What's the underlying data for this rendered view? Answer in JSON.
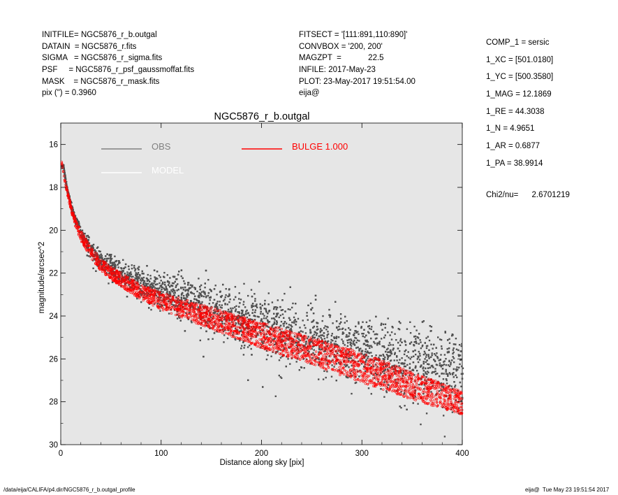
{
  "header_left": [
    {
      "key": "INITFILE=",
      "value": "NGC5876_r_b.outgal"
    },
    {
      "key": "DATAIN  =",
      "value": "NGC5876_r.fits"
    },
    {
      "key": "SIGMA   =",
      "value": "NGC5876_r_sigma.fits"
    },
    {
      "key": "PSF     =",
      "value": "NGC5876_r_psf_gaussmoffat.fits"
    },
    {
      "key": "MASK    =",
      "value": "NGC5876_r_mask.fits"
    },
    {
      "key": "pix (\") =",
      "value": "0.3960"
    }
  ],
  "header_mid": [
    {
      "key": "FITSECT =",
      "value": "'[111:891,110:890]'"
    },
    {
      "key": "CONVBOX =",
      "value": "'200, 200'"
    },
    {
      "key": "MAGZPT  =",
      "value": "           22.5"
    },
    {
      "key": "INFILE:",
      "value": "2017-May-23"
    },
    {
      "key": "PLOT:",
      "value": "23-May-2017 19:51:54.00"
    },
    {
      "key": "",
      "value": "eija@"
    }
  ],
  "header_right": [
    {
      "key": "COMP_1",
      "value": "= sersic"
    },
    {
      "key": "1_XC",
      "value": "= [501.0180]"
    },
    {
      "key": "1_YC",
      "value": "= [500.3580]"
    },
    {
      "key": "1_MAG",
      "value": "= 12.1869"
    },
    {
      "key": "1_RE",
      "value": "= 44.3038"
    },
    {
      "key": "1_N",
      "value": "= 4.9651"
    },
    {
      "key": "1_AR",
      "value": "= 0.6877"
    },
    {
      "key": "1_PA",
      "value": "= 38.9914"
    }
  ],
  "chi2": {
    "label": "Chi2/nu=",
    "value": "2.6701219"
  },
  "footer": {
    "path": "/data/eija/CALIFA/p4.dir/NGC5876_r_b.outgal_profile",
    "stamp": "eija@  Tue May 23 19:51:54 2017"
  },
  "chart_data": {
    "type": "scatter",
    "title": "NGC5876_r_b.outgal",
    "xlabel": "Distance along sky [pix]",
    "ylabel": "magnitude/arcsec^2",
    "xlim": [
      0,
      400
    ],
    "ylim": [
      30,
      15
    ],
    "y_inverted": true,
    "xticks": [
      0,
      100,
      200,
      300,
      400
    ],
    "yticks": [
      16,
      18,
      20,
      22,
      24,
      26,
      28,
      30
    ],
    "background": "#e6e6e6",
    "legend": [
      {
        "label": "OBS",
        "color": "#808080"
      },
      {
        "label": "BULGE  1.000",
        "color": "#ff0000"
      },
      {
        "label": "MODEL",
        "color": "#ffffff"
      }
    ],
    "series": [
      {
        "name": "OBS",
        "color": "#505050",
        "marker": "dot",
        "x": [
          2,
          5,
          10,
          15,
          20,
          30,
          40,
          50,
          60,
          70,
          80,
          90,
          100,
          110,
          120,
          130,
          140,
          150,
          175,
          200,
          225,
          250,
          275,
          300,
          325,
          350,
          375,
          400
        ],
        "y_center": [
          17.0,
          17.9,
          18.9,
          19.6,
          20.1,
          20.9,
          21.4,
          21.7,
          22.0,
          22.25,
          22.4,
          22.6,
          22.75,
          22.9,
          23.05,
          23.25,
          23.45,
          23.65,
          24.0,
          24.35,
          24.7,
          25.0,
          25.3,
          25.55,
          25.8,
          26.05,
          26.3,
          26.5
        ],
        "y_spread": [
          0.15,
          0.2,
          0.3,
          0.4,
          0.5,
          0.7,
          0.8,
          0.9,
          1.0,
          1.1,
          1.2,
          1.3,
          1.4,
          1.5,
          1.6,
          1.7,
          1.8,
          1.9,
          2.1,
          2.3,
          2.4,
          2.5,
          2.6,
          2.7,
          2.8,
          2.9,
          3.0,
          3.1
        ]
      },
      {
        "name": "BULGE  1.000",
        "color": "#ff0000",
        "marker": "ring",
        "x": [
          1,
          5,
          10,
          15,
          20,
          30,
          40,
          50,
          75,
          100,
          150,
          200,
          250,
          300,
          350,
          400
        ],
        "y_upper": [
          16.8,
          17.8,
          18.8,
          19.5,
          20.0,
          20.8,
          21.3,
          21.7,
          22.4,
          22.9,
          23.6,
          24.3,
          25.0,
          25.7,
          26.6,
          27.5
        ],
        "y_lower": [
          16.9,
          18.0,
          19.1,
          19.9,
          20.5,
          21.3,
          21.9,
          22.3,
          23.1,
          23.7,
          24.6,
          25.5,
          26.3,
          27.1,
          27.9,
          28.6
        ]
      }
    ]
  }
}
